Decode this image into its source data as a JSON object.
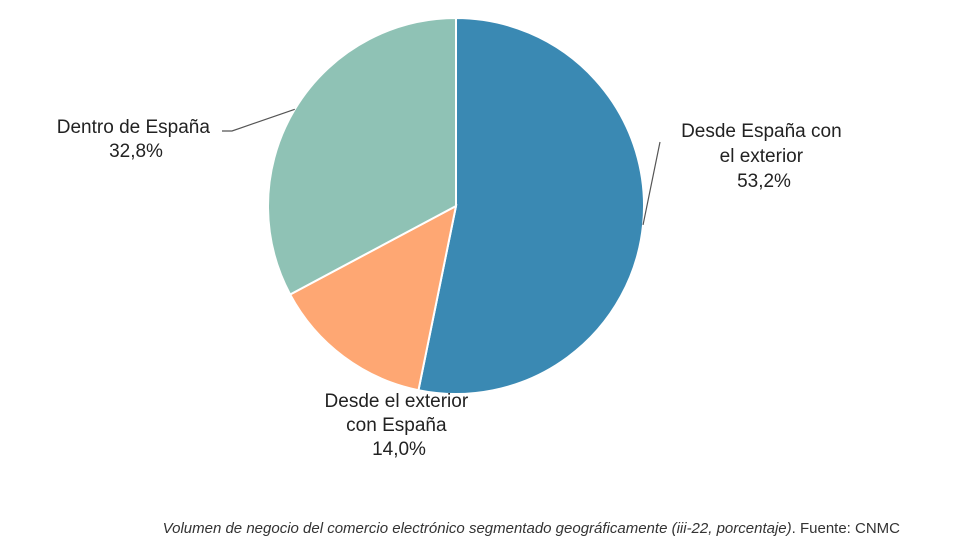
{
  "chart_data": {
    "type": "pie",
    "slices": [
      {
        "label_lines": [
          "Desde España con",
          "el exterior"
        ],
        "value_label": "53,2%",
        "value": 53.2,
        "color": "#3a89b3"
      },
      {
        "label_lines": [
          "Desde el exterior",
          "con España"
        ],
        "value_label": "14,0%",
        "value": 14.0,
        "color": "#fea773"
      },
      {
        "label_lines": [
          "Dentro de España"
        ],
        "value_label": "32,8%",
        "value": 32.8,
        "color": "#8fc2b5"
      }
    ],
    "start_angle_deg": 0,
    "direction": "clockwise"
  },
  "caption": {
    "title": "Volumen de negocio del comercio electrónico segmentado geográficamente (iii-22, porcentaje)",
    "source": "Fuente: CNMC"
  }
}
